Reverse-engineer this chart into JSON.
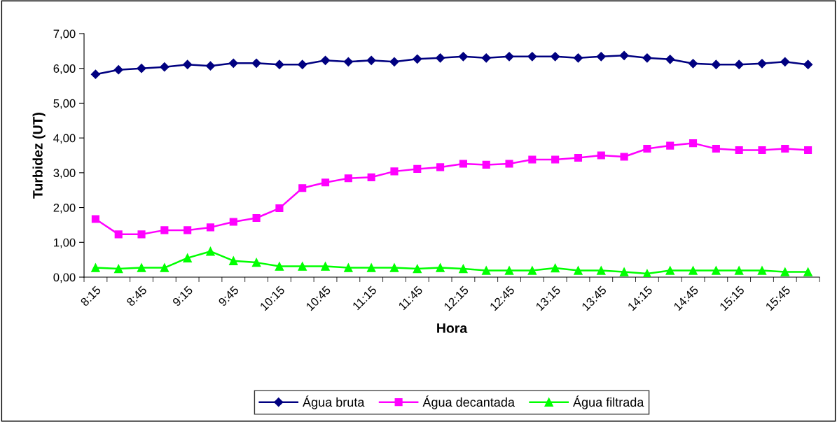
{
  "chart_data": {
    "type": "line",
    "xlabel": "Hora",
    "ylabel": "Turbidez (UT)",
    "categories": [
      "8:15",
      null,
      "8:45",
      null,
      "9:15",
      null,
      "9:45",
      null,
      "10:15",
      null,
      "10:45",
      null,
      "11:15",
      null,
      "11:45",
      null,
      "12:15",
      null,
      "12:45",
      null,
      "13:15",
      null,
      "13:45",
      null,
      "14:15",
      null,
      "14:45",
      null,
      "15:15",
      null,
      "15:45",
      null
    ],
    "series": [
      {
        "name": "Água bruta",
        "color": "#000080",
        "marker": "diamond",
        "values": [
          5.83,
          5.96,
          6.0,
          6.04,
          6.11,
          6.07,
          6.15,
          6.15,
          6.11,
          6.11,
          6.23,
          6.19,
          6.23,
          6.19,
          6.27,
          6.3,
          6.34,
          6.3,
          6.34,
          6.34,
          6.34,
          6.3,
          6.34,
          6.37,
          6.3,
          6.26,
          6.14,
          6.11,
          6.11,
          6.14,
          6.19,
          6.11
        ]
      },
      {
        "name": "Água decantada",
        "color": "#ff00ff",
        "marker": "square",
        "values": [
          1.67,
          1.23,
          1.23,
          1.35,
          1.35,
          1.43,
          1.59,
          1.7,
          1.98,
          2.56,
          2.72,
          2.84,
          2.87,
          3.04,
          3.11,
          3.16,
          3.26,
          3.23,
          3.26,
          3.38,
          3.38,
          3.43,
          3.5,
          3.46,
          3.69,
          3.78,
          3.85,
          3.69,
          3.65,
          3.65,
          3.69,
          3.65
        ]
      },
      {
        "name": "Água filtrada",
        "color": "#00ff00",
        "marker": "triangle",
        "values": [
          0.27,
          0.24,
          0.27,
          0.27,
          0.55,
          0.74,
          0.47,
          0.42,
          0.31,
          0.31,
          0.31,
          0.27,
          0.27,
          0.27,
          0.24,
          0.27,
          0.24,
          0.19,
          0.19,
          0.19,
          0.26,
          0.19,
          0.19,
          0.15,
          0.1,
          0.19,
          0.19,
          0.19,
          0.19,
          0.19,
          0.15,
          0.15
        ]
      }
    ],
    "ylim": [
      0,
      7
    ],
    "yticks": [
      {
        "value": 0,
        "label": "0,00"
      },
      {
        "value": 1,
        "label": "1,00"
      },
      {
        "value": 2,
        "label": "2,00"
      },
      {
        "value": 3,
        "label": "3,00"
      },
      {
        "value": 4,
        "label": "4,00"
      },
      {
        "value": 5,
        "label": "5,00"
      },
      {
        "value": 6,
        "label": "6,00"
      },
      {
        "value": 7,
        "label": "7,00"
      }
    ],
    "grid": false,
    "legend": "bottom",
    "line_style": "solid"
  }
}
